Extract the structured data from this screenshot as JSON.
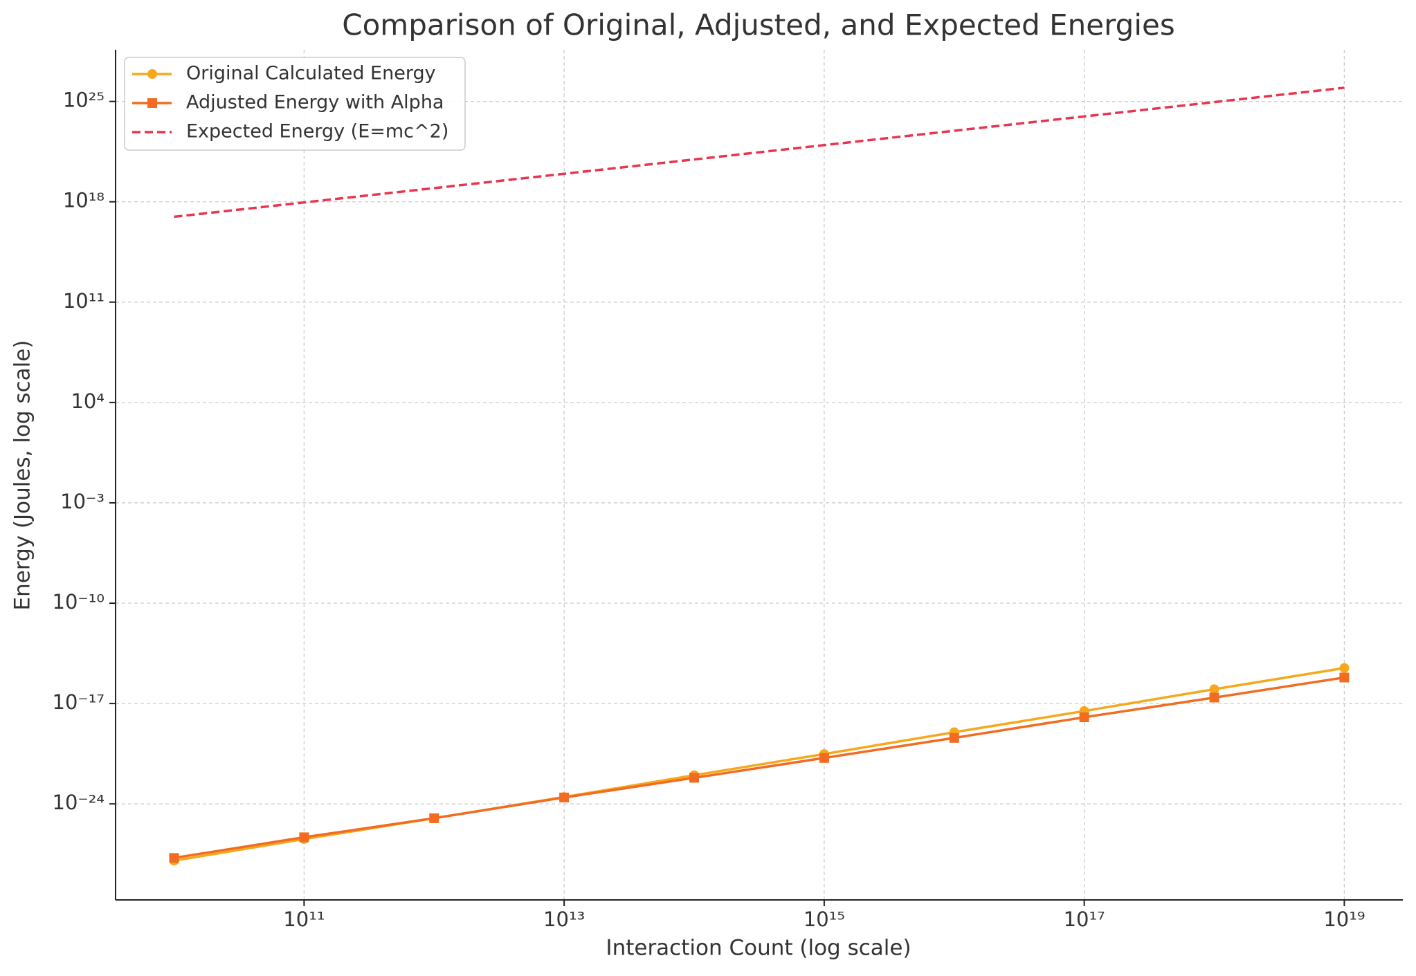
{
  "chart_data": {
    "type": "line",
    "title": "Comparison of Original, Adjusted, and Expected Energies",
    "x_label": "Interaction Count (log scale)",
    "y_label": "Energy (Joules, log scale)",
    "x": [
      10000000000.0,
      100000000000.0,
      1000000000000.0,
      10000000000000.0,
      100000000000000.0,
      1000000000000000.0,
      1e+16,
      1e+17,
      1e+18,
      1e+19
    ],
    "series": [
      {
        "name": "Original Calculated Energy",
        "color": "#f5a81c",
        "marker": "circle",
        "linestyle": "solid",
        "values": [
          1.1e-28,
          3.5e-27,
          1e-25,
          3e-24,
          1e-22,
          3e-21,
          1e-19,
          3e-18,
          1e-16,
          3e-15
        ]
      },
      {
        "name": "Adjusted Energy with Alpha",
        "color": "#f26b21",
        "marker": "square",
        "linestyle": "solid",
        "values": [
          1.7e-28,
          4.7e-27,
          1e-25,
          2.8e-24,
          6.6e-23,
          1.6e-21,
          4e-20,
          1.1e-18,
          2.6e-17,
          6.5e-16
        ]
      },
      {
        "name": "Expected Energy (E=mc^2)",
        "color": "#e8344e",
        "marker": "none",
        "linestyle": "dashed",
        "values": [
          9e+16,
          9e+17,
          9e+18,
          9e+19,
          9e+20,
          9e+21,
          9e+22,
          9e+23,
          9e+24,
          9e+25
        ]
      }
    ],
    "xlog": true,
    "ylog": true,
    "xlim": [
      3550000000.0,
      2.82e+19
    ],
    "ylim": [
      2e-31,
      4e+28
    ],
    "xticks": [
      {
        "value": 100000000000.0,
        "label": "10¹¹"
      },
      {
        "value": 10000000000000.0,
        "label": "10¹³"
      },
      {
        "value": 1000000000000000.0,
        "label": "10¹⁵"
      },
      {
        "value": 1e+17,
        "label": "10¹⁷"
      },
      {
        "value": 1e+19,
        "label": "10¹⁹"
      }
    ],
    "yticks": [
      {
        "value": 1e-24,
        "label": "10⁻²⁴"
      },
      {
        "value": 1e-17,
        "label": "10⁻¹⁷"
      },
      {
        "value": 1e-10,
        "label": "10⁻¹⁰"
      },
      {
        "value": 0.001,
        "label": "10⁻³"
      },
      {
        "value": 10000.0,
        "label": "10⁴"
      },
      {
        "value": 100000000000.0,
        "label": "10¹¹"
      },
      {
        "value": 1e+18,
        "label": "10¹⁸"
      },
      {
        "value": 1e+25,
        "label": "10²⁵"
      }
    ],
    "grid": true,
    "legend": "upper left"
  }
}
